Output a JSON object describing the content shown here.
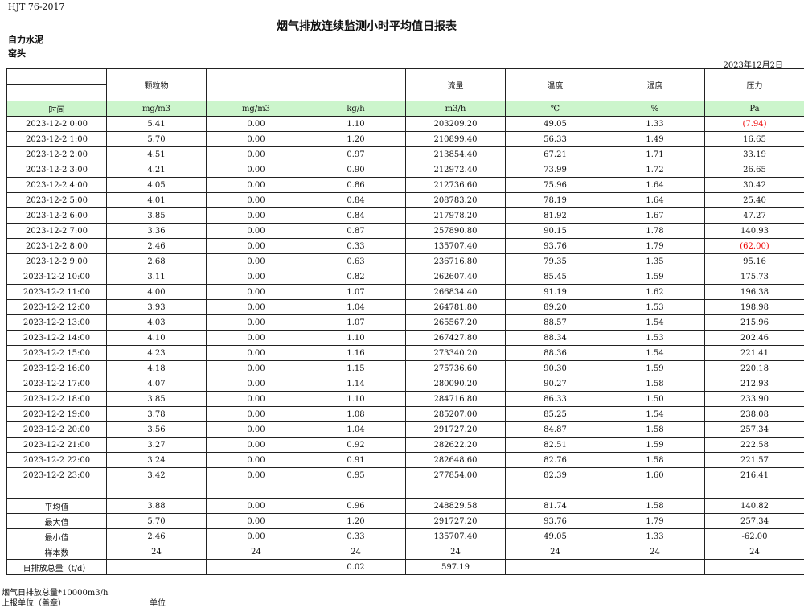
{
  "header": {
    "standard": "HJT  76-2017",
    "title": "烟气排放连续监测小时平均值日报表",
    "company": "自力水泥",
    "unit": "窑头",
    "date": "2023年12月2日"
  },
  "columns": {
    "names": [
      "",
      "颗粒物",
      "",
      "",
      "流量",
      "温度",
      "湿度",
      "压力"
    ],
    "units": [
      "时间",
      "mg/m3",
      "mg/m3",
      "kg/h",
      "m3/h",
      "℃",
      "%",
      "Pa"
    ]
  },
  "accent_colors": {
    "header_green": "#ccf5cc",
    "negative_red": "#e00000"
  },
  "rows": [
    [
      "2023-12-2 0:00",
      "5.41",
      "0.00",
      "1.10",
      "203209.20",
      "49.05",
      "1.33",
      "(7.94)"
    ],
    [
      "2023-12-2 1:00",
      "5.70",
      "0.00",
      "1.20",
      "210899.40",
      "56.33",
      "1.49",
      "16.65"
    ],
    [
      "2023-12-2 2:00",
      "4.51",
      "0.00",
      "0.97",
      "213854.40",
      "67.21",
      "1.71",
      "33.19"
    ],
    [
      "2023-12-2 3:00",
      "4.21",
      "0.00",
      "0.90",
      "212972.40",
      "73.99",
      "1.72",
      "26.65"
    ],
    [
      "2023-12-2 4:00",
      "4.05",
      "0.00",
      "0.86",
      "212736.60",
      "75.96",
      "1.64",
      "30.42"
    ],
    [
      "2023-12-2 5:00",
      "4.01",
      "0.00",
      "0.84",
      "208783.20",
      "78.19",
      "1.64",
      "25.40"
    ],
    [
      "2023-12-2 6:00",
      "3.85",
      "0.00",
      "0.84",
      "217978.20",
      "81.92",
      "1.67",
      "47.27"
    ],
    [
      "2023-12-2 7:00",
      "3.36",
      "0.00",
      "0.87",
      "257890.80",
      "90.15",
      "1.78",
      "140.93"
    ],
    [
      "2023-12-2 8:00",
      "2.46",
      "0.00",
      "0.33",
      "135707.40",
      "93.76",
      "1.79",
      "(62.00)"
    ],
    [
      "2023-12-2 9:00",
      "2.68",
      "0.00",
      "0.63",
      "236716.80",
      "79.35",
      "1.35",
      "95.16"
    ],
    [
      "2023-12-2 10:00",
      "3.11",
      "0.00",
      "0.82",
      "262607.40",
      "85.45",
      "1.59",
      "175.73"
    ],
    [
      "2023-12-2 11:00",
      "4.00",
      "0.00",
      "1.07",
      "266834.40",
      "91.19",
      "1.62",
      "196.38"
    ],
    [
      "2023-12-2 12:00",
      "3.93",
      "0.00",
      "1.04",
      "264781.80",
      "89.20",
      "1.53",
      "198.98"
    ],
    [
      "2023-12-2 13:00",
      "4.03",
      "0.00",
      "1.07",
      "265567.20",
      "88.57",
      "1.54",
      "215.96"
    ],
    [
      "2023-12-2 14:00",
      "4.10",
      "0.00",
      "1.10",
      "267427.80",
      "88.34",
      "1.53",
      "202.46"
    ],
    [
      "2023-12-2 15:00",
      "4.23",
      "0.00",
      "1.16",
      "273340.20",
      "88.36",
      "1.54",
      "221.41"
    ],
    [
      "2023-12-2 16:00",
      "4.18",
      "0.00",
      "1.15",
      "275736.60",
      "90.30",
      "1.59",
      "220.18"
    ],
    [
      "2023-12-2 17:00",
      "4.07",
      "0.00",
      "1.14",
      "280090.20",
      "90.27",
      "1.58",
      "212.93"
    ],
    [
      "2023-12-2 18:00",
      "3.85",
      "0.00",
      "1.10",
      "284716.80",
      "86.33",
      "1.50",
      "233.90"
    ],
    [
      "2023-12-2 19:00",
      "3.78",
      "0.00",
      "1.08",
      "285207.00",
      "85.25",
      "1.54",
      "238.08"
    ],
    [
      "2023-12-2 20:00",
      "3.56",
      "0.00",
      "1.04",
      "291727.20",
      "84.87",
      "1.58",
      "257.34"
    ],
    [
      "2023-12-2 21:00",
      "3.27",
      "0.00",
      "0.92",
      "282622.20",
      "82.51",
      "1.59",
      "222.58"
    ],
    [
      "2023-12-2 22:00",
      "3.24",
      "0.00",
      "0.91",
      "282648.60",
      "82.76",
      "1.58",
      "221.57"
    ],
    [
      "2023-12-2 23:00",
      "3.42",
      "0.00",
      "0.95",
      "277854.00",
      "82.39",
      "1.60",
      "216.41"
    ]
  ],
  "summary": [
    [
      "平均值",
      "3.88",
      "0.00",
      "0.96",
      "248829.58",
      "81.74",
      "1.58",
      "140.82"
    ],
    [
      "最大值",
      "5.70",
      "0.00",
      "1.20",
      "291727.20",
      "93.76",
      "1.79",
      "257.34"
    ],
    [
      "最小值",
      "2.46",
      "0.00",
      "0.33",
      "135707.40",
      "49.05",
      "1.33",
      "-62.00"
    ],
    [
      "样本数",
      "24",
      "24",
      "24",
      "24",
      "24",
      "24",
      "24"
    ],
    [
      "日排放总量（t/d）",
      "",
      "",
      "0.02",
      "597.19",
      "",
      "",
      ""
    ]
  ],
  "footer": {
    "note": "烟气日排放总量*10000m3/h",
    "reporter": "上报单位（盖章）",
    "unit_label": "单位"
  }
}
